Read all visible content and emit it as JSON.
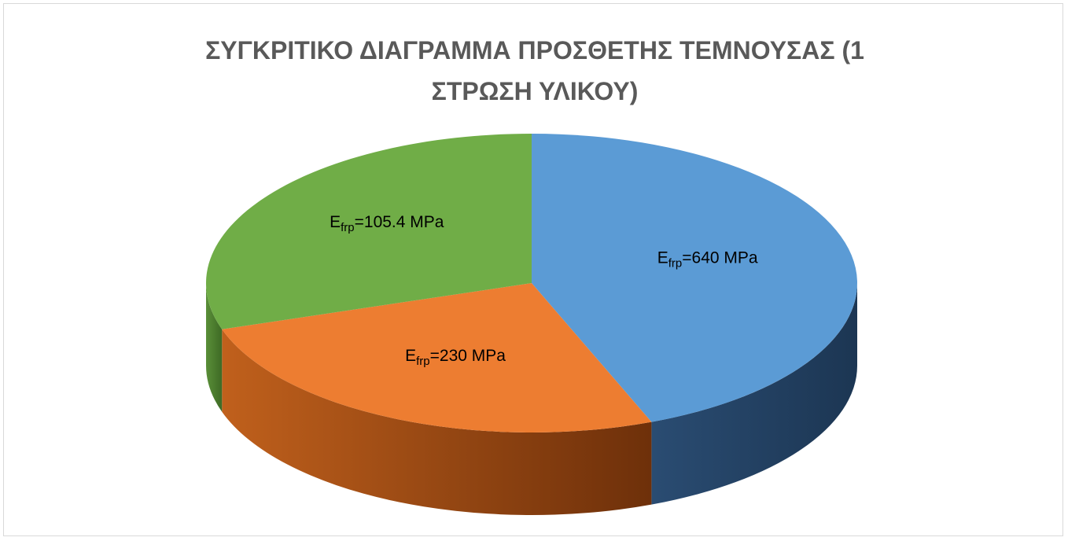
{
  "chart_data": {
    "type": "pie",
    "title": "ΣΥΓΚΡΙΤΙΚΟ ΔΙΑΓΡΑΜΜΑ ΠΡΟΣΘΕΤΗΣ ΤΕΜΝΟΥΣΑΣ (1 ΣΤΡΩΣΗ ΥΛΙΚΟΥ)",
    "categories": [
      "Efrp=640 MPa",
      "Efrp=230 MPa",
      "Efrp=105.4 MPa"
    ],
    "values": [
      44,
      26,
      30
    ],
    "colors": [
      "#5b9bd5",
      "#ed7d31",
      "#70ad47"
    ]
  }
}
